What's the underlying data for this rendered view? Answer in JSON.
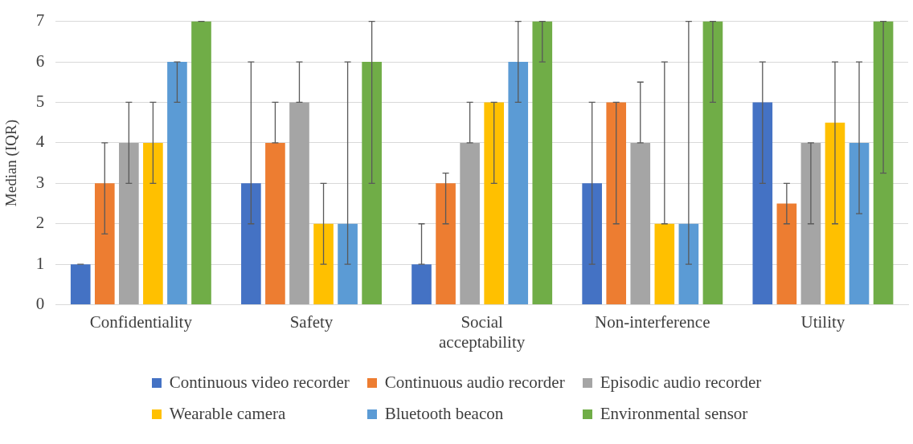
{
  "chart_data": {
    "type": "bar",
    "ylabel": "Median (IQR)",
    "categories": [
      "Confidentiality",
      "Safety",
      "Social acceptability",
      "Non-interference",
      "Utility"
    ],
    "ylim": [
      0,
      7
    ],
    "yticks": [
      0,
      1,
      2,
      3,
      4,
      5,
      6,
      7
    ],
    "grid": "y",
    "legend": "bottom",
    "series": [
      {
        "name": "Continuous video recorder",
        "color": "#4472c4",
        "values": [
          1,
          3,
          1,
          3,
          5
        ],
        "errors": [
          [
            1,
            1
          ],
          [
            2,
            6
          ],
          [
            1,
            2
          ],
          [
            1,
            5
          ],
          [
            3,
            6
          ]
        ]
      },
      {
        "name": "Continuous audio recorder",
        "color": "#ed7d31",
        "values": [
          3,
          4,
          3,
          5,
          2.5
        ],
        "errors": [
          [
            1.75,
            4
          ],
          [
            4,
            5
          ],
          [
            2,
            3.25
          ],
          [
            2,
            5
          ],
          [
            2,
            3
          ]
        ]
      },
      {
        "name": "Episodic audio recorder",
        "color": "#a5a5a5",
        "values": [
          4,
          5,
          4,
          4,
          4
        ],
        "errors": [
          [
            3,
            5
          ],
          [
            5,
            6
          ],
          [
            4,
            5
          ],
          [
            4,
            5.5
          ],
          [
            2,
            4
          ]
        ]
      },
      {
        "name": "Wearable camera",
        "color": "#ffc000",
        "values": [
          4,
          2,
          5,
          2,
          4.5
        ],
        "errors": [
          [
            3,
            5
          ],
          [
            1,
            3
          ],
          [
            3,
            5
          ],
          [
            2,
            6
          ],
          [
            2,
            6
          ]
        ]
      },
      {
        "name": "Bluetooth beacon",
        "color": "#5b9bd5",
        "values": [
          6,
          2,
          6,
          2,
          4
        ],
        "errors": [
          [
            5,
            6
          ],
          [
            1,
            6
          ],
          [
            5,
            7
          ],
          [
            1,
            7
          ],
          [
            2.25,
            6
          ]
        ]
      },
      {
        "name": "Environmental sensor",
        "color": "#70ad47",
        "values": [
          7,
          6,
          7,
          7,
          7
        ],
        "errors": [
          [
            7,
            7
          ],
          [
            3,
            7
          ],
          [
            6,
            7
          ],
          [
            5,
            7
          ],
          [
            3.25,
            7
          ]
        ]
      }
    ]
  }
}
